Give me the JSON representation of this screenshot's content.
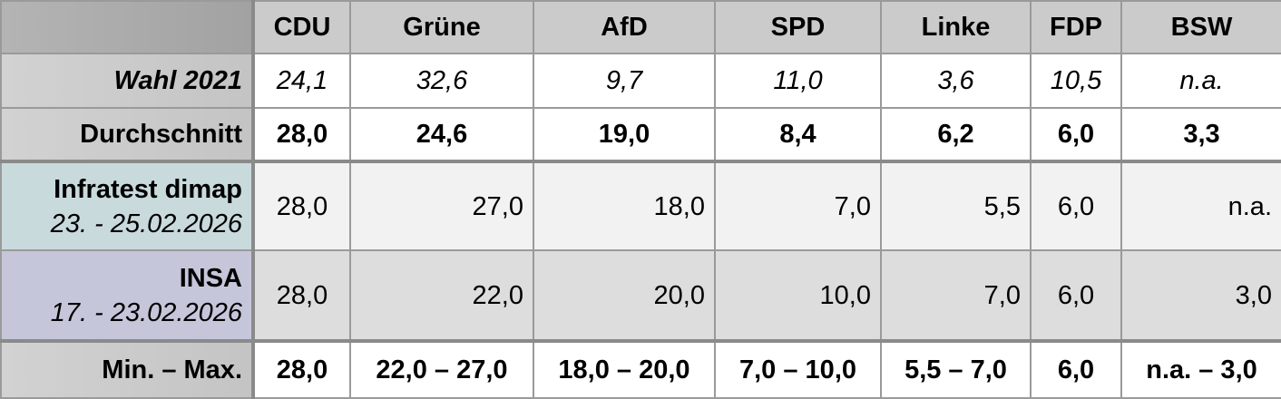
{
  "table": {
    "columns": [
      "CDU",
      "Grüne",
      "AfD",
      "SPD",
      "Linke",
      "FDP",
      "BSW"
    ],
    "rows": [
      {
        "label": "Wahl 2021",
        "values": [
          "24,1",
          "32,6",
          "9,7",
          "11,0",
          "3,6",
          "10,5",
          "n.a."
        ]
      },
      {
        "label": "Durchschnitt",
        "values": [
          "28,0",
          "24,6",
          "19,0",
          "8,4",
          "6,2",
          "6,0",
          "3,3"
        ]
      },
      {
        "label": "Infratest dimap",
        "sublabel": "23. - 25.02.2026",
        "values": [
          "28,0",
          "27,0",
          "18,0",
          "7,0",
          "5,5",
          "6,0",
          "n.a."
        ]
      },
      {
        "label": "INSA",
        "sublabel": "17. - 23.02.2026",
        "values": [
          "28,0",
          "22,0",
          "20,0",
          "10,0",
          "7,0",
          "6,0",
          "3,0"
        ]
      },
      {
        "label": "Min. – Max.",
        "values": [
          "28,0",
          "22,0 – 27,0",
          "18,0 – 20,0",
          "7,0 – 10,0",
          "5,5 – 7,0",
          "6,0",
          "n.a. – 3,0"
        ]
      }
    ]
  }
}
